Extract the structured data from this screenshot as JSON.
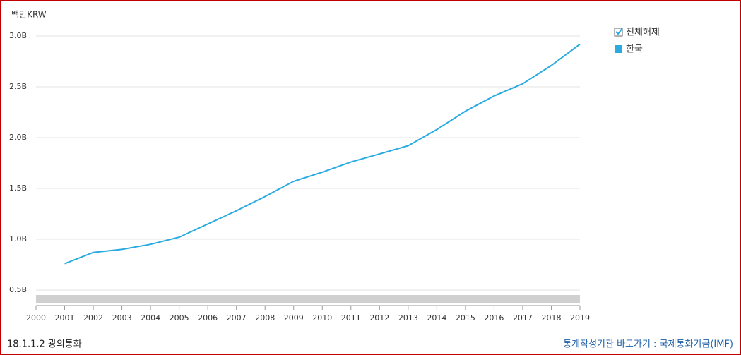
{
  "chart_data": {
    "type": "line",
    "y_label": "백만KRW",
    "x": [
      2001,
      2002,
      2003,
      2004,
      2005,
      2006,
      2007,
      2008,
      2009,
      2010,
      2011,
      2012,
      2013,
      2014,
      2015,
      2016,
      2017,
      2018,
      2019
    ],
    "series": [
      {
        "name": "한국",
        "color": "#29abe2",
        "values": [
          760000000,
          870000000,
          900000000,
          950000000,
          1020000000,
          1150000000,
          1280000000,
          1420000000,
          1570000000,
          1660000000,
          1760000000,
          1840000000,
          1920000000,
          2080000000,
          2260000000,
          2410000000,
          2530000000,
          2710000000,
          2920000000
        ]
      }
    ],
    "xlim": [
      2000,
      2019
    ],
    "xticks": [
      2000,
      2001,
      2002,
      2003,
      2004,
      2005,
      2006,
      2007,
      2008,
      2009,
      2010,
      2011,
      2012,
      2013,
      2014,
      2015,
      2016,
      2017,
      2018,
      2019
    ],
    "ylim": [
      347000000,
      3000000000
    ],
    "yticks": [
      {
        "value": 500000000,
        "label": "0.5B"
      },
      {
        "value": 1000000000,
        "label": "1.0B"
      },
      {
        "value": 1500000000,
        "label": "1.5B"
      },
      {
        "value": 2000000000,
        "label": "2.0B"
      },
      {
        "value": 2500000000,
        "label": "2.5B"
      },
      {
        "value": 3000000000,
        "label": "3.0B"
      }
    ],
    "grid": true,
    "legend_toggle": "전체해제",
    "footer_left": "18.1.1.2 광의통화",
    "footer_link": "통계작성기관 바로가기 : 국제통화기금(IMF)"
  }
}
